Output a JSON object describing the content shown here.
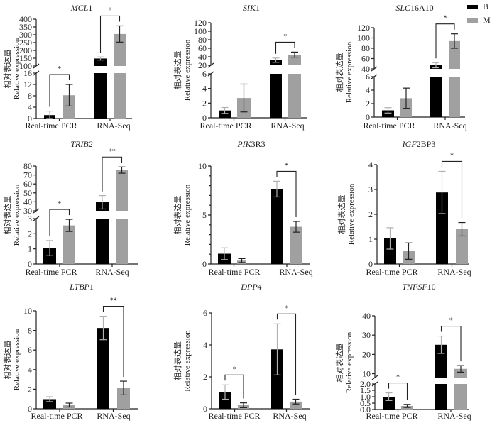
{
  "colors": {
    "B": "#000000",
    "M": "#a0a0a0",
    "axis": "#222222",
    "bracket_B": "#b8b8b8",
    "bracket_M": "#222222"
  },
  "legend": [
    {
      "label": "B",
      "color": "#000000"
    },
    {
      "label": "M",
      "color": "#a0a0a0"
    }
  ],
  "ylabel_cn": "相对表达量",
  "ylabel_en": "Relative expression",
  "chart_data": [
    {
      "type": "bar",
      "title_italic": "MCL",
      "title_roman": "1",
      "categories": [
        "Real-time PCR",
        "RNA-Seq"
      ],
      "series": [
        {
          "name": "B",
          "values": [
            1.2,
            148
          ],
          "errors": [
            1.4,
            10
          ]
        },
        {
          "name": "M",
          "values": [
            8.2,
            305
          ],
          "errors": [
            3.8,
            52
          ]
        }
      ],
      "axis": {
        "broken": true,
        "lower": {
          "range": [
            0,
            16
          ],
          "ticks": [
            0,
            4,
            8,
            12,
            16
          ]
        },
        "upper": {
          "range": [
            100,
            400
          ],
          "ticks": [
            100,
            150,
            200,
            250,
            300,
            350,
            400
          ]
        }
      },
      "significance": [
        {
          "category": 0,
          "label": "*"
        },
        {
          "category": 1,
          "label": "*"
        }
      ]
    },
    {
      "type": "bar",
      "title_italic": "SIK",
      "title_roman": "1",
      "categories": [
        "Real-time PCR",
        "RNA-Seq"
      ],
      "series": [
        {
          "name": "B",
          "values": [
            1.0,
            32
          ],
          "errors": [
            0.4,
            5
          ]
        },
        {
          "name": "M",
          "values": [
            2.7,
            45
          ],
          "errors": [
            1.9,
            6
          ]
        }
      ],
      "axis": {
        "broken": true,
        "lower": {
          "range": [
            0,
            6
          ],
          "ticks": [
            0,
            2,
            4,
            6
          ]
        },
        "upper": {
          "range": [
            20,
            120
          ],
          "ticks": [
            20,
            40,
            60,
            80,
            100,
            120
          ]
        }
      },
      "significance": [
        {
          "category": 1,
          "label": "*"
        }
      ]
    },
    {
      "type": "bar",
      "title_italic": "SLC",
      "title_roman": "16A10",
      "categories": [
        "Real-time PCR",
        "RNA-Seq"
      ],
      "series": [
        {
          "name": "B",
          "values": [
            1.0,
            47
          ],
          "errors": [
            0.4,
            5
          ]
        },
        {
          "name": "M",
          "values": [
            2.8,
            94
          ],
          "errors": [
            1.5,
            14
          ]
        }
      ],
      "axis": {
        "broken": true,
        "lower": {
          "range": [
            0,
            6
          ],
          "ticks": [
            0,
            2,
            4,
            6
          ]
        },
        "upper": {
          "range": [
            40,
            120
          ],
          "ticks": [
            40,
            60,
            80,
            100,
            120
          ]
        }
      },
      "significance": [
        {
          "category": 1,
          "label": "*"
        }
      ]
    },
    {
      "type": "bar",
      "title_italic": "TRIB2",
      "title_roman": "",
      "categories": [
        "Real-time PCR",
        "RNA-Seq"
      ],
      "series": [
        {
          "name": "B",
          "values": [
            1.05,
            39.5
          ],
          "errors": [
            0.5,
            7.5
          ]
        },
        {
          "name": "M",
          "values": [
            2.55,
            75.5
          ],
          "errors": [
            0.4,
            3.5
          ]
        }
      ],
      "axis": {
        "broken": true,
        "lower": {
          "range": [
            0,
            3
          ],
          "ticks": [
            0,
            1,
            2,
            3
          ]
        },
        "upper": {
          "range": [
            30,
            80
          ],
          "ticks": [
            30,
            40,
            50,
            60,
            70,
            80
          ]
        }
      },
      "significance": [
        {
          "category": 0,
          "label": "*"
        },
        {
          "category": 1,
          "label": "**"
        }
      ]
    },
    {
      "type": "bar",
      "title_italic": "PIK",
      "title_roman": "3R3",
      "categories": [
        "Real-time PCR",
        "RNA-Seq"
      ],
      "series": [
        {
          "name": "B",
          "values": [
            1.05,
            7.65
          ],
          "errors": [
            0.6,
            0.8
          ]
        },
        {
          "name": "M",
          "values": [
            0.35,
            3.8
          ],
          "errors": [
            0.2,
            0.55
          ]
        }
      ],
      "axis": {
        "broken": false,
        "range": [
          0,
          10
        ],
        "ticks": [
          0,
          5,
          10
        ],
        "minor_ticks": 5
      },
      "significance": [
        {
          "category": 1,
          "label": "*"
        }
      ]
    },
    {
      "type": "bar",
      "title_italic": "IGF",
      "title_roman": "2BP3",
      "categories": [
        "Real-time PCR",
        "RNA-Seq"
      ],
      "series": [
        {
          "name": "B",
          "values": [
            1.03,
            2.88
          ],
          "errors": [
            0.43,
            0.85
          ]
        },
        {
          "name": "M",
          "values": [
            0.52,
            1.4
          ],
          "errors": [
            0.33,
            0.27
          ]
        }
      ],
      "axis": {
        "broken": false,
        "range": [
          0,
          4
        ],
        "ticks": [
          0,
          1,
          2,
          3,
          4
        ],
        "minor_ticks": 0
      },
      "significance": [
        {
          "category": 1,
          "label": "*"
        }
      ]
    },
    {
      "type": "bar",
      "title_italic": "LTBP",
      "title_roman": "1",
      "categories": [
        "Real-time PCR",
        "RNA-Seq"
      ],
      "series": [
        {
          "name": "B",
          "values": [
            0.98,
            8.25
          ],
          "errors": [
            0.25,
            1.2
          ]
        },
        {
          "name": "M",
          "values": [
            0.38,
            2.12
          ],
          "errors": [
            0.2,
            0.7
          ]
        }
      ],
      "axis": {
        "broken": false,
        "range": [
          0,
          10
        ],
        "ticks": [
          0,
          2,
          4,
          6,
          8,
          10
        ],
        "minor_ticks": 0
      },
      "significance": [
        {
          "category": 1,
          "label": "**"
        }
      ]
    },
    {
      "type": "bar",
      "title_italic": "DPP4",
      "title_roman": "",
      "categories": [
        "Real-time PCR",
        "RNA-Seq"
      ],
      "series": [
        {
          "name": "B",
          "values": [
            1.05,
            3.72
          ],
          "errors": [
            0.45,
            1.6
          ]
        },
        {
          "name": "M",
          "values": [
            0.22,
            0.45
          ],
          "errors": [
            0.15,
            0.15
          ]
        }
      ],
      "axis": {
        "broken": false,
        "range": [
          0,
          6
        ],
        "ticks": [
          0,
          2,
          4,
          6
        ],
        "minor_ticks": 0
      },
      "significance": [
        {
          "category": 0,
          "label": "*"
        },
        {
          "category": 1,
          "label": "*"
        }
      ]
    },
    {
      "type": "bar",
      "title_italic": "TNFSF",
      "title_roman": "10",
      "categories": [
        "Real-time PCR",
        "RNA-Seq"
      ],
      "series": [
        {
          "name": "B",
          "values": [
            1.0,
            25
          ],
          "errors": [
            0.3,
            4.5
          ]
        },
        {
          "name": "M",
          "values": [
            0.28,
            12.5
          ],
          "errors": [
            0.12,
            1.7
          ]
        }
      ],
      "axis": {
        "broken": true,
        "lower": {
          "range": [
            0,
            2
          ],
          "ticks": [
            0.0,
            0.5,
            1.0,
            1.5,
            2.0
          ],
          "decimals": 1
        },
        "upper": {
          "range": [
            8,
            40
          ],
          "ticks": [
            10,
            20,
            30,
            40
          ]
        }
      },
      "significance": [
        {
          "category": 0,
          "label": "*"
        },
        {
          "category": 1,
          "label": "*"
        }
      ]
    }
  ]
}
